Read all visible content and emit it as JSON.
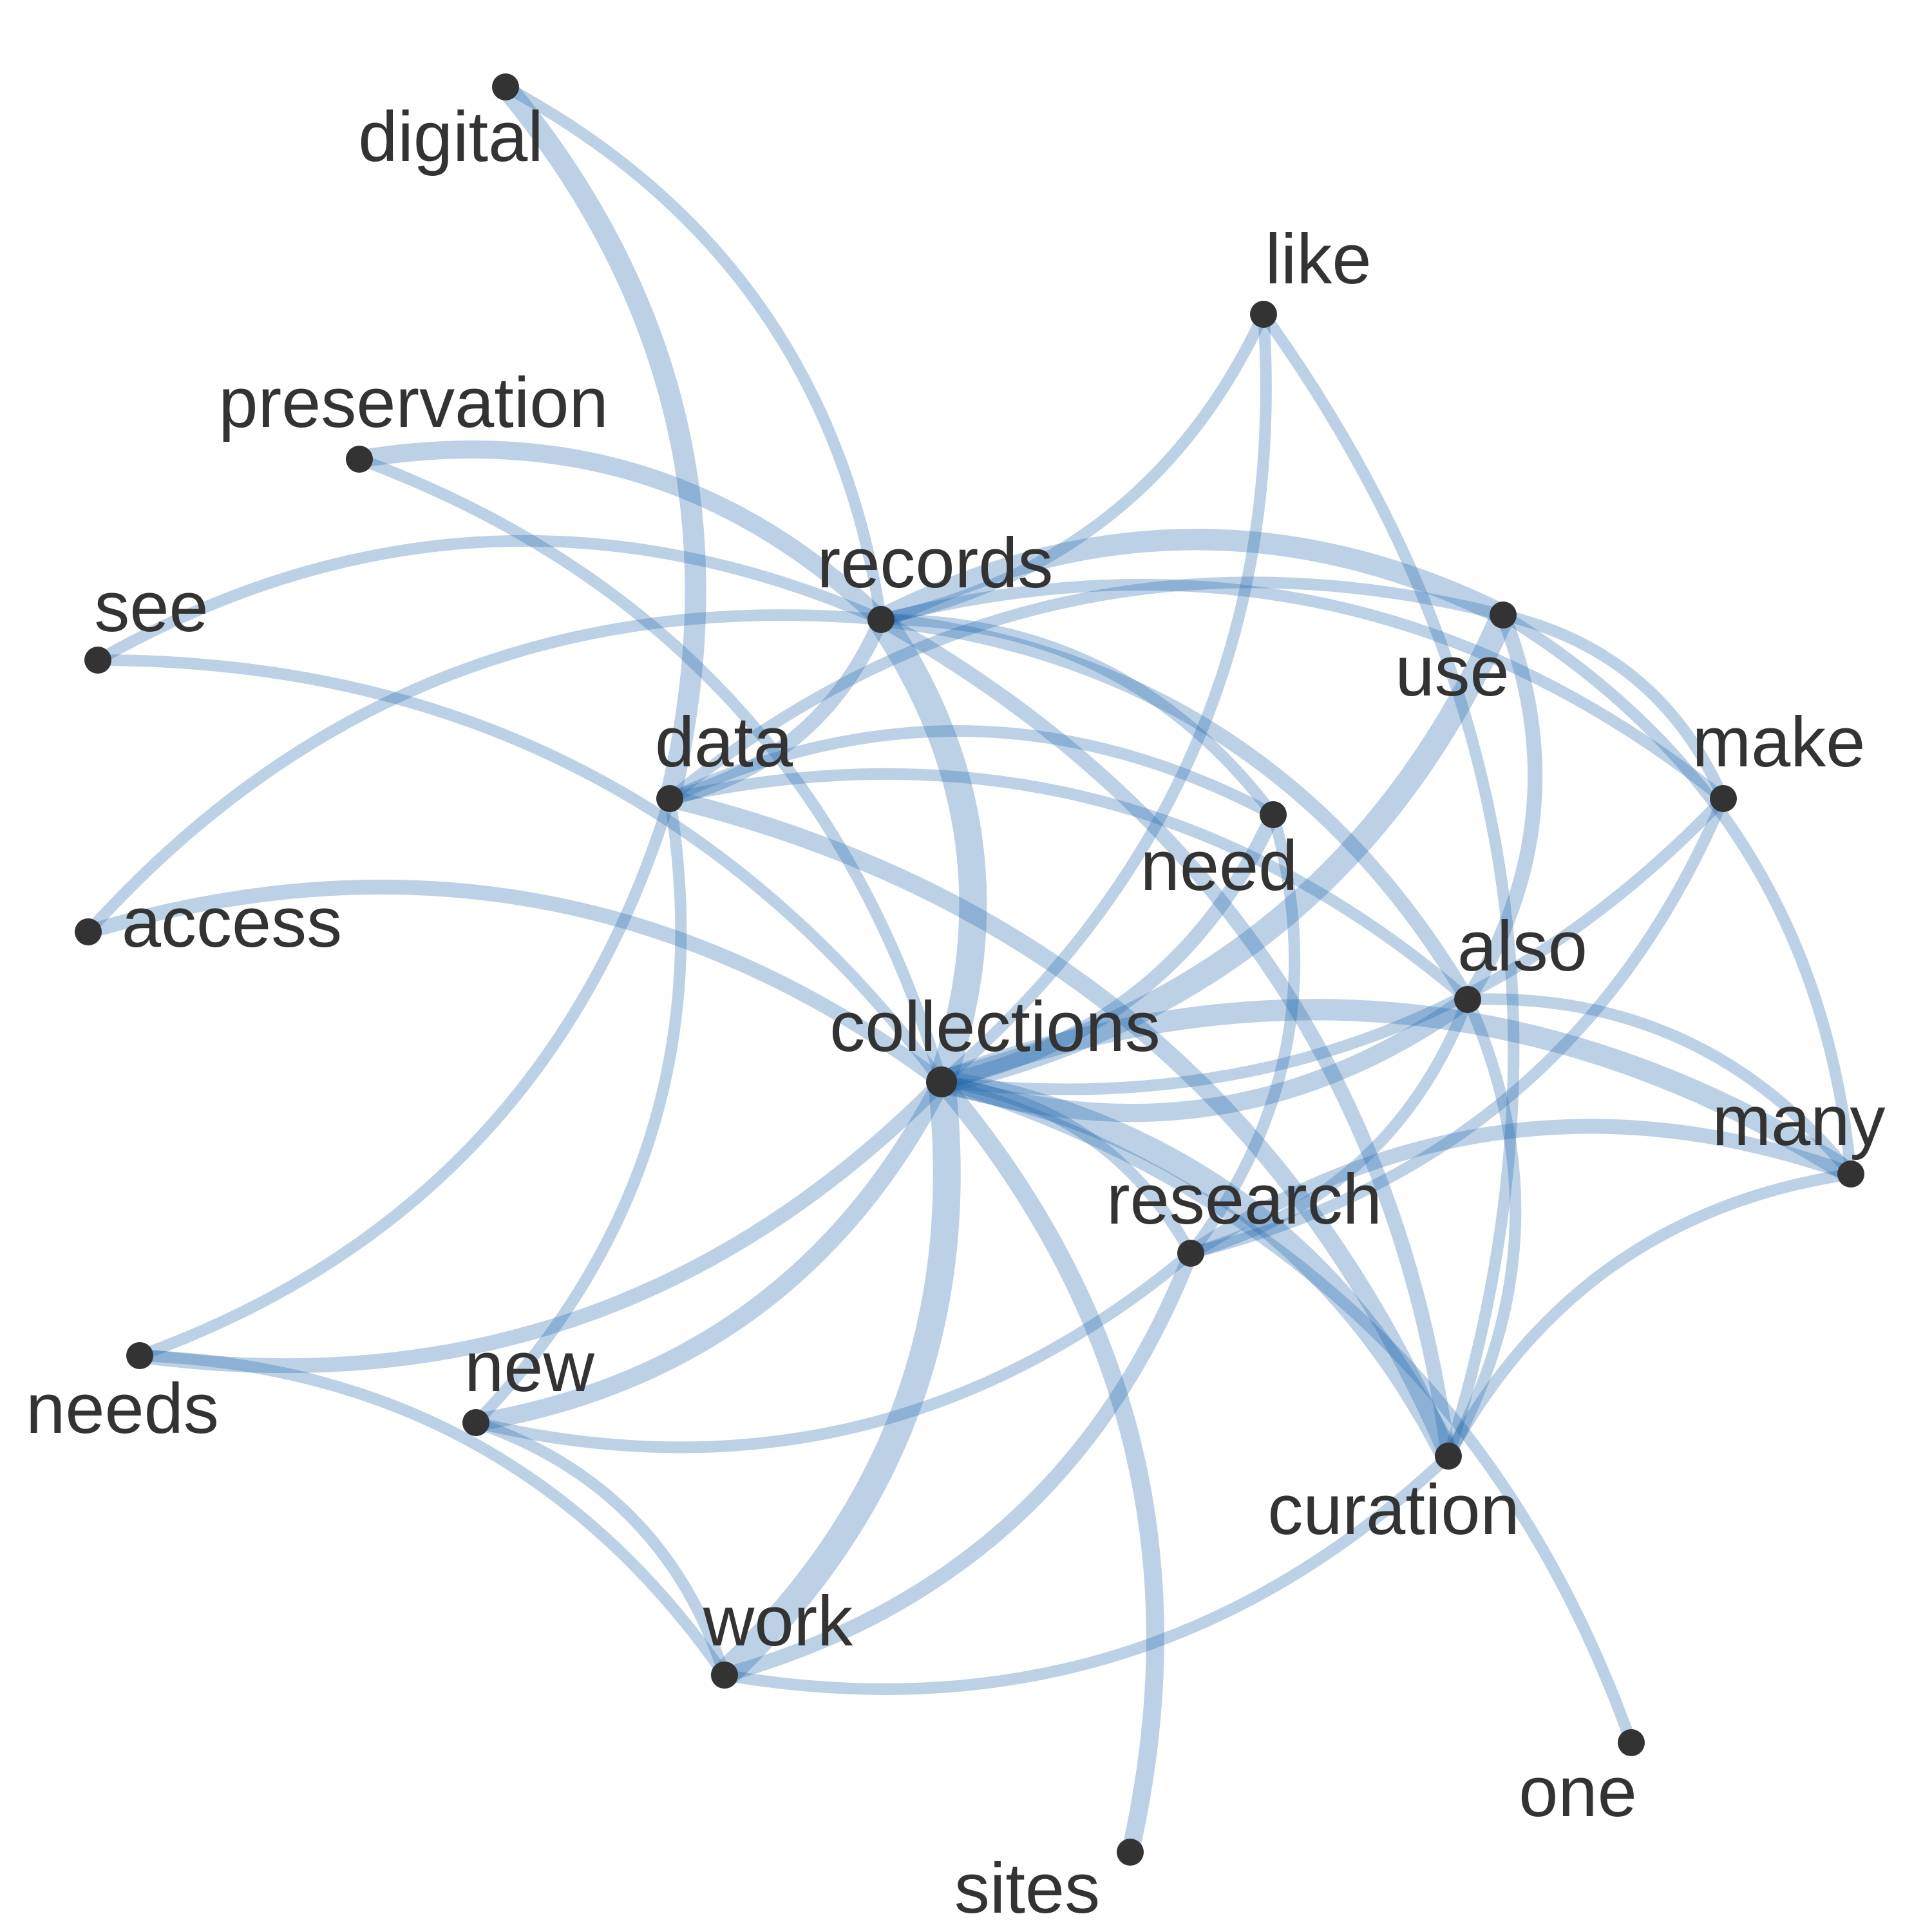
{
  "graph": {
    "edge_color": "#2166ac",
    "node_color": "#333333",
    "label_color": "#333333",
    "nodes": [
      {
        "id": "digital",
        "label": "digital"
      },
      {
        "id": "like",
        "label": "like"
      },
      {
        "id": "preservation",
        "label": "preservation"
      },
      {
        "id": "records",
        "label": "records"
      },
      {
        "id": "see",
        "label": "see"
      },
      {
        "id": "use",
        "label": "use"
      },
      {
        "id": "data",
        "label": "data"
      },
      {
        "id": "make",
        "label": "make"
      },
      {
        "id": "need",
        "label": "need"
      },
      {
        "id": "access",
        "label": "access"
      },
      {
        "id": "also",
        "label": "also"
      },
      {
        "id": "collections",
        "label": "collections"
      },
      {
        "id": "many",
        "label": "many"
      },
      {
        "id": "research",
        "label": "research"
      },
      {
        "id": "needs",
        "label": "needs"
      },
      {
        "id": "new",
        "label": "new"
      },
      {
        "id": "curation",
        "label": "curation"
      },
      {
        "id": "work",
        "label": "work"
      },
      {
        "id": "one",
        "label": "one"
      },
      {
        "id": "sites",
        "label": "sites"
      }
    ],
    "edges": [
      {
        "source": "digital",
        "target": "data",
        "weight": 5
      },
      {
        "source": "digital",
        "target": "records",
        "weight": 2
      },
      {
        "source": "preservation",
        "target": "records",
        "weight": 4
      },
      {
        "source": "preservation",
        "target": "collections",
        "weight": 2
      },
      {
        "source": "like",
        "target": "records",
        "weight": 2
      },
      {
        "source": "like",
        "target": "collections",
        "weight": 2
      },
      {
        "source": "like",
        "target": "curation",
        "weight": 2
      },
      {
        "source": "see",
        "target": "records",
        "weight": 2
      },
      {
        "source": "see",
        "target": "collections",
        "weight": 2
      },
      {
        "source": "records",
        "target": "use",
        "weight": 5
      },
      {
        "source": "records",
        "target": "need",
        "weight": 2
      },
      {
        "source": "records",
        "target": "make",
        "weight": 2
      },
      {
        "source": "records",
        "target": "also",
        "weight": 3
      },
      {
        "source": "records",
        "target": "collections",
        "weight": 7
      },
      {
        "source": "records",
        "target": "curation",
        "weight": 3
      },
      {
        "source": "records",
        "target": "data",
        "weight": 3
      },
      {
        "source": "access",
        "target": "records",
        "weight": 2
      },
      {
        "source": "access",
        "target": "collections",
        "weight": 3
      },
      {
        "source": "data",
        "target": "use",
        "weight": 2
      },
      {
        "source": "data",
        "target": "need",
        "weight": 2
      },
      {
        "source": "data",
        "target": "also",
        "weight": 2
      },
      {
        "source": "data",
        "target": "new",
        "weight": 2
      },
      {
        "source": "data",
        "target": "needs",
        "weight": 2
      },
      {
        "source": "data",
        "target": "curation",
        "weight": 4
      },
      {
        "source": "use",
        "target": "collections",
        "weight": 6
      },
      {
        "source": "use",
        "target": "make",
        "weight": 2
      },
      {
        "source": "use",
        "target": "also",
        "weight": 3
      },
      {
        "source": "use",
        "target": "many",
        "weight": 2
      },
      {
        "source": "make",
        "target": "collections",
        "weight": 2
      },
      {
        "source": "make",
        "target": "research",
        "weight": 2
      },
      {
        "source": "need",
        "target": "collections",
        "weight": 3
      },
      {
        "source": "need",
        "target": "research",
        "weight": 2
      },
      {
        "source": "also",
        "target": "collections",
        "weight": 4
      },
      {
        "source": "also",
        "target": "research",
        "weight": 2
      },
      {
        "source": "also",
        "target": "curation",
        "weight": 2
      },
      {
        "source": "also",
        "target": "many",
        "weight": 2
      },
      {
        "source": "collections",
        "target": "many",
        "weight": 5
      },
      {
        "source": "collections",
        "target": "research",
        "weight": 2
      },
      {
        "source": "collections",
        "target": "curation",
        "weight": 6
      },
      {
        "source": "collections",
        "target": "needs",
        "weight": 3
      },
      {
        "source": "collections",
        "target": "new",
        "weight": 4
      },
      {
        "source": "collections",
        "target": "work",
        "weight": 7
      },
      {
        "source": "collections",
        "target": "sites",
        "weight": 4
      },
      {
        "source": "collections",
        "target": "one",
        "weight": 2
      },
      {
        "source": "research",
        "target": "many",
        "weight": 3
      },
      {
        "source": "research",
        "target": "new",
        "weight": 2
      },
      {
        "source": "research",
        "target": "work",
        "weight": 3
      },
      {
        "source": "curation",
        "target": "many",
        "weight": 2
      },
      {
        "source": "curation",
        "target": "work",
        "weight": 2
      },
      {
        "source": "needs",
        "target": "work",
        "weight": 2
      },
      {
        "source": "new",
        "target": "work",
        "weight": 2
      }
    ]
  }
}
